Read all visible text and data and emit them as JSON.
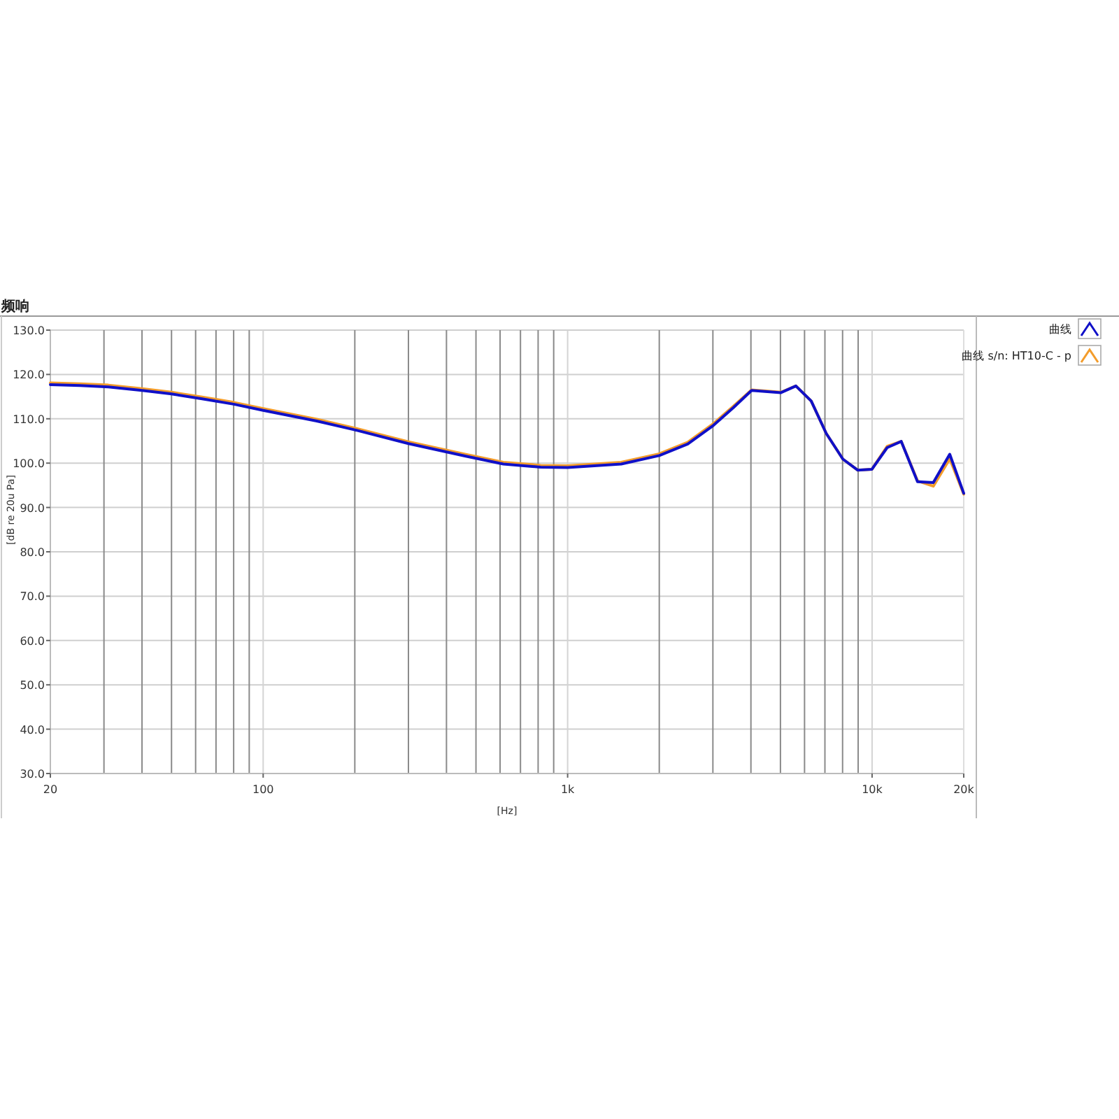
{
  "chart_data": {
    "type": "line",
    "title": "频响",
    "xlabel": "[Hz]",
    "ylabel": "[dB re 20u Pa]",
    "log": "x",
    "grid": true,
    "legend": "right",
    "marker": "none",
    "line_style": "solid",
    "xlim": [
      20,
      20000
    ],
    "ylim": [
      30,
      130
    ],
    "xticks": [
      20,
      100,
      {
        "value": 1000,
        "label": "1k"
      },
      {
        "value": 10000,
        "label": "10k"
      },
      {
        "value": 20000,
        "label": "20k"
      }
    ],
    "yticks": [
      {
        "value": 30,
        "label": "30.0"
      },
      {
        "value": 40,
        "label": "40.0"
      },
      {
        "value": 50,
        "label": "50.0"
      },
      {
        "value": 60,
        "label": "60.0"
      },
      {
        "value": 70,
        "label": "70.0"
      },
      {
        "value": 80,
        "label": "80.0"
      },
      {
        "value": 90,
        "label": "90.0"
      },
      {
        "value": 100,
        "label": "100.0"
      },
      {
        "value": 110,
        "label": "110.0"
      },
      {
        "value": 120,
        "label": "120.0"
      },
      {
        "value": 130,
        "label": "130.0"
      }
    ],
    "x": [
      20,
      25,
      31,
      40,
      50,
      63,
      80,
      100,
      150,
      200,
      300,
      460,
      615,
      816,
      1000,
      1500,
      2000,
      2480,
      3010,
      3500,
      4020,
      5020,
      5620,
      6310,
      7070,
      8020,
      8980,
      9980,
      11210,
      12470,
      14100,
      15890,
      17990,
      20000
    ],
    "series": [
      {
        "name": "曲线 s/n: HT10-C - p",
        "color": "#f39c2b",
        "values": [
          118.1,
          117.9,
          117.6,
          116.8,
          116.0,
          114.9,
          113.7,
          112.3,
          109.9,
          107.9,
          104.8,
          102.0,
          100.2,
          99.5,
          99.4,
          100.2,
          102.1,
          104.7,
          108.9,
          112.8,
          116.5,
          116.0,
          117.4,
          114.0,
          106.7,
          100.9,
          98.4,
          98.6,
          103.8,
          104.9,
          96.0,
          94.8,
          101.0,
          93.0
        ]
      },
      {
        "name": "曲线",
        "color": "#1010c8",
        "values": [
          117.7,
          117.5,
          117.2,
          116.4,
          115.6,
          114.5,
          113.3,
          111.9,
          109.5,
          107.5,
          104.4,
          101.6,
          99.8,
          99.1,
          99.0,
          99.8,
          101.7,
          104.3,
          108.5,
          112.5,
          116.4,
          115.9,
          117.4,
          114.0,
          106.7,
          100.9,
          98.4,
          98.6,
          103.5,
          104.9,
          95.8,
          95.6,
          102.0,
          93.2
        ]
      }
    ]
  }
}
